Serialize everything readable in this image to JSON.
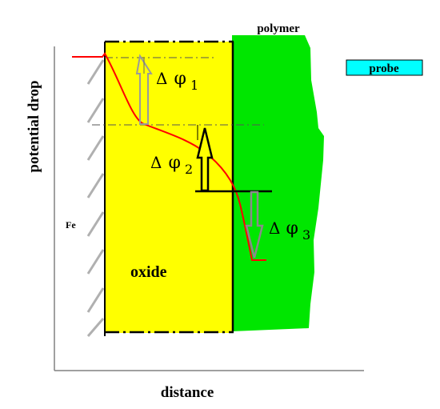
{
  "labels": {
    "y_axis": "potential drop",
    "x_axis": "distance",
    "polymer": "polymer",
    "probe": "probe",
    "metal": "Fe",
    "oxide": "oxide"
  },
  "potentials": [
    {
      "symbol": "Δ",
      "phi": "φ",
      "subscript": "1"
    },
    {
      "symbol": "Δ",
      "phi": "φ",
      "subscript": "2"
    },
    {
      "symbol": "Δ",
      "phi": "φ",
      "subscript": "3"
    }
  ],
  "colors": {
    "oxide": "#ffff00",
    "polymer": "#00e600",
    "probe": "#00ffff",
    "potential_curve": "#ff0000",
    "axis": "#808080",
    "hatch": "#b0b0b0"
  }
}
